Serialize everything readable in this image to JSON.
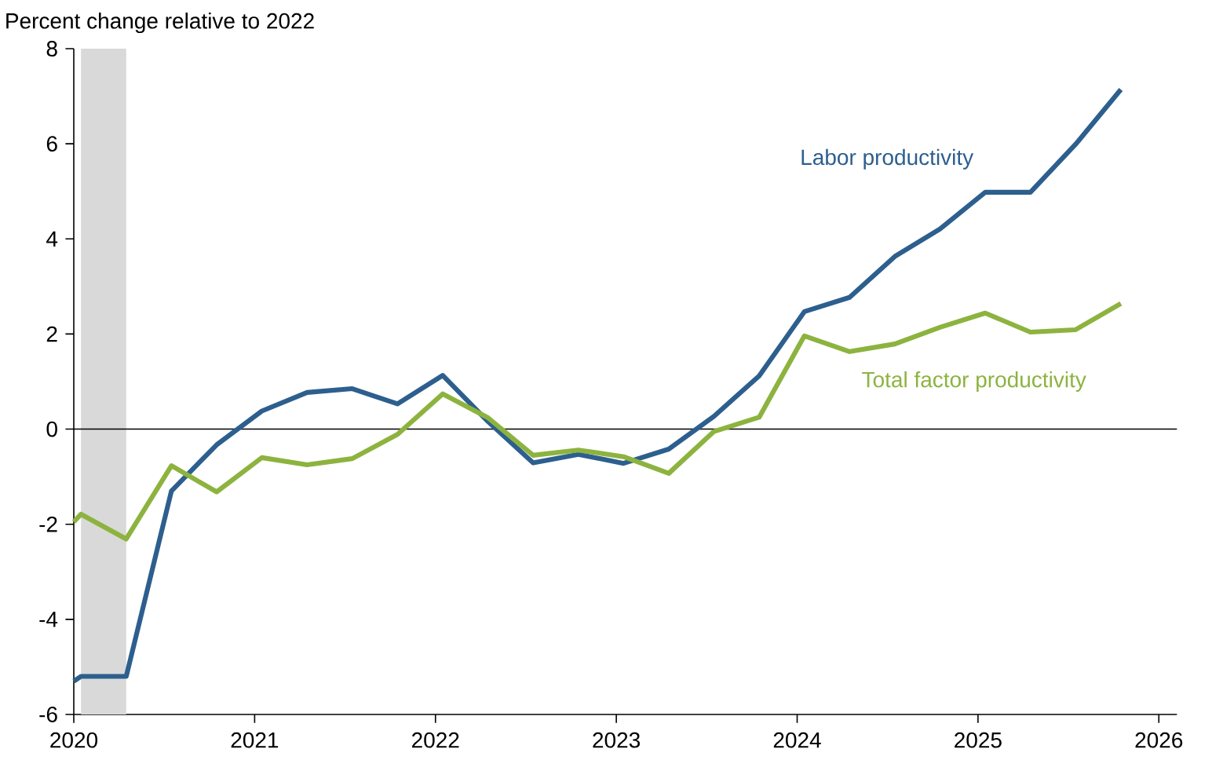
{
  "chart_data": {
    "type": "line",
    "ylabel": "Percent change relative to 2022",
    "x": [
      2020.0,
      2020.04,
      2020.29,
      2020.54,
      2020.79,
      2021.04,
      2021.29,
      2021.54,
      2021.79,
      2022.04,
      2022.29,
      2022.54,
      2022.79,
      2023.04,
      2023.29,
      2023.54,
      2023.79,
      2024.04,
      2024.29,
      2024.54,
      2024.79,
      2025.04,
      2025.29,
      2025.54,
      2025.79
    ],
    "series": [
      {
        "name": "Labor productivity",
        "color": "#2d5f8e",
        "values": [
          -5.3,
          -5.2,
          -5.2,
          -1.3,
          -0.33,
          0.38,
          0.77,
          0.85,
          0.53,
          1.13,
          0.16,
          -0.71,
          -0.53,
          -0.72,
          -0.42,
          0.27,
          1.12,
          2.47,
          2.77,
          3.63,
          4.21,
          4.98,
          4.98,
          5.99,
          7.14
        ]
      },
      {
        "name": "Total factor productivity",
        "color": "#8db33f",
        "values": [
          -1.95,
          -1.79,
          -2.31,
          -0.77,
          -1.32,
          -0.6,
          -0.75,
          -0.62,
          -0.11,
          0.74,
          0.24,
          -0.55,
          -0.44,
          -0.58,
          -0.93,
          -0.05,
          0.25,
          1.96,
          1.63,
          1.79,
          2.14,
          2.44,
          2.04,
          2.09,
          2.64
        ]
      }
    ],
    "xlim": [
      2020,
      2026.1
    ],
    "ylim": [
      -6,
      8
    ],
    "xticks": [
      2020,
      2021,
      2022,
      2023,
      2024,
      2025,
      2026
    ],
    "yticks": [
      -6,
      -4,
      -2,
      0,
      2,
      4,
      6,
      8
    ],
    "bands": [
      {
        "axis": "x",
        "from": 2020.04,
        "to": 2020.29,
        "color": "#d9d9d9"
      }
    ],
    "ref_lines": [
      {
        "axis": "y",
        "value": 0,
        "color": "#000000"
      }
    ],
    "legend": false,
    "grid": false
  }
}
